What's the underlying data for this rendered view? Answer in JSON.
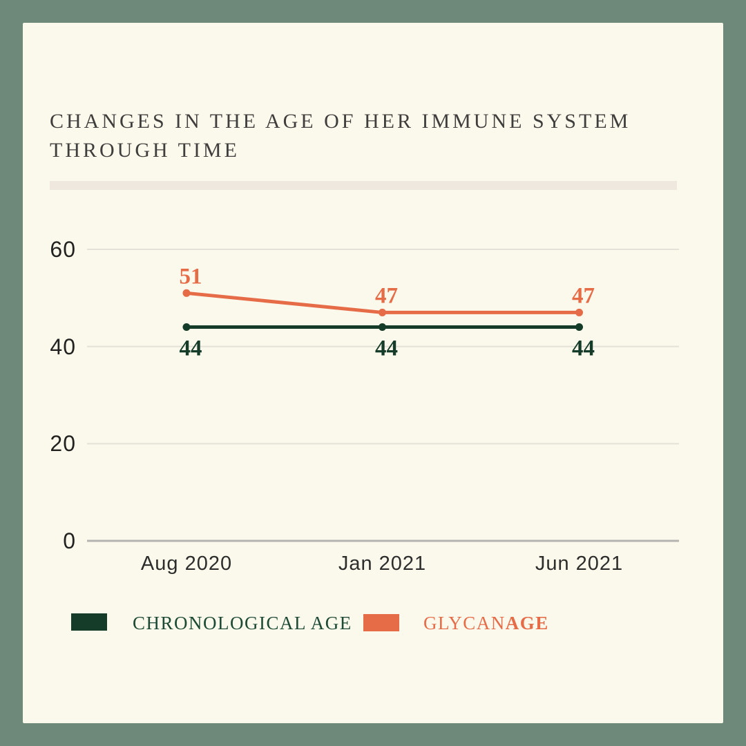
{
  "card": {
    "title_lines": [
      "CHANGES IN THE AGE OF HER IMMUNE SYSTEM",
      "THROUGH TIME"
    ]
  },
  "colors": {
    "frame_border": "#6e8879",
    "card_background": "#fbf8ec",
    "divider_bar": "#efe8de",
    "title_text": "#3f3e3c",
    "grid_line": "#e4e1d8",
    "axis_baseline": "#b5b4b0",
    "chronological_green": "#143c28",
    "glycan_orange": "#e66c48"
  },
  "chart_data": {
    "type": "line",
    "title": "CHANGES IN THE AGE OF HER IMMUNE SYSTEM THROUGH TIME",
    "categories": [
      "Aug 2020",
      "Jan 2021",
      "Jun 2021"
    ],
    "series": [
      {
        "name": "CHRONOLOGICAL AGE",
        "color": "#143c28",
        "values": [
          44,
          44,
          44
        ],
        "label_side": "below"
      },
      {
        "name": "GLYCANAGE",
        "color": "#e66c48",
        "values": [
          51,
          47,
          47
        ],
        "label_side": "above"
      }
    ],
    "yticks": [
      60,
      40,
      20,
      0
    ],
    "ylim": [
      0,
      64
    ],
    "grid": true,
    "legend_position": "bottom",
    "xlabel": "",
    "ylabel": ""
  },
  "legend": {
    "items": [
      {
        "label": "CHRONOLOGICAL AGE",
        "color": "#143c28"
      },
      {
        "label_regular": "GLYCAN",
        "label_bold": "AGE",
        "color": "#e66c48"
      }
    ]
  }
}
